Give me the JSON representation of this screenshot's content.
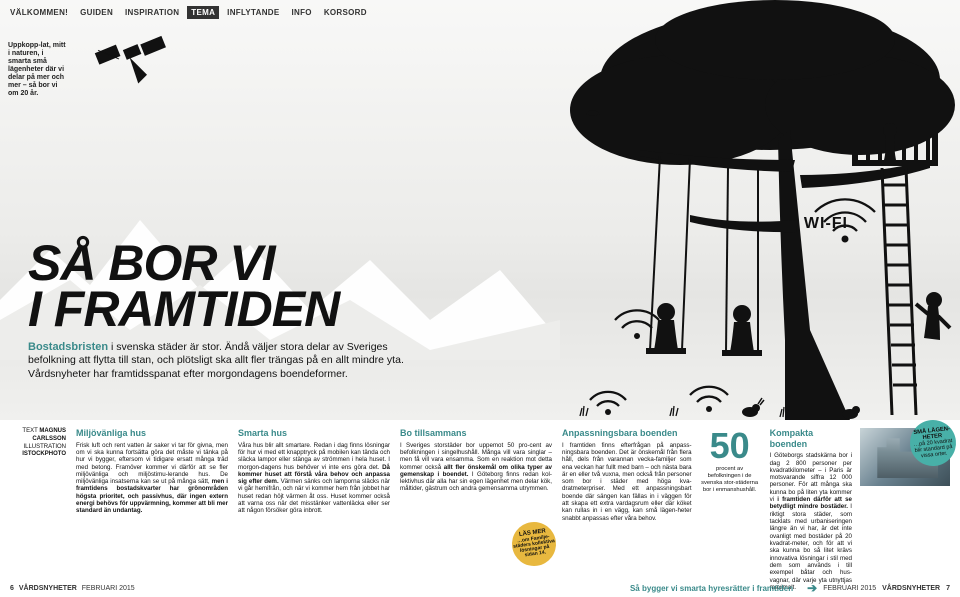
{
  "nav": {
    "items": [
      "VÄLKOMMEN!",
      "GUIDEN",
      "INSPIRATION",
      "TEMA",
      "INFLYTANDE",
      "INFO",
      "KORSORD"
    ],
    "active_index": 3
  },
  "intro": "Uppkopp-lat, mitt i naturen, i smarta små lägenheter där vi delar på mer och mer – så bor vi om 20 år.",
  "headline": {
    "line1": "SÅ BOR VI",
    "line2": "I FRAMTIDEN"
  },
  "lede": {
    "highlight": "Bostadsbristen",
    "rest": " i svenska städer är stor. Ändå väljer stora delar av Sveriges befolkning att flytta till stan, och plötsligt ska allt fler trängas på en allt mindre yta. Vårdsnyheter har framtidsspanat efter morgondagens boendeformer."
  },
  "wifi_label": "WI-FI",
  "credits": {
    "text_label": "TEXT",
    "text_value": "MAGNUS CARLSSON",
    "illu_label": "ILLUSTRATION",
    "illu_value": "ISTOCKPHOTO"
  },
  "columns": [
    {
      "title": "Miljövänliga hus",
      "body": "Frisk luft och rent vatten är saker vi tar för givna, men om vi ska kunna fortsätta göra det måste vi tänka på hur vi bygger, eftersom vi tidigare ersatt många träd med betong. Framöver kommer vi därför att se fler miljövänliga och miljöstimu-lerande hus. De miljövänliga insatserna kan se ut på många sätt, ",
      "bold": "men i framtidens bostadskvarter har grönområden högsta prioritet, och passivhus, där ingen extern energi behövs för uppvärmning, kommer att bli mer standard än undantag."
    },
    {
      "title": "Smarta hus",
      "body": "Våra hus blir allt smartare. Redan i dag finns lösningar för hur vi med ett knapptryck på mobilen kan tända och släcka lampor eller stänga av strömmen i hela huset. I morgon-dagens hus behöver vi inte ens göra det. ",
      "bold": "Då kommer huset att förstå våra behov och anpassa sig efter dem.",
      "body2": " Värmen sänks och lamporna släcks när vi går hemifrån, och när vi kommer hem från jobbet har huset redan höjt värmen åt oss. Huset kommer också att varna oss när det misstänker vattenläcka eller ser att någon försöker göra inbrott."
    },
    {
      "title": "Bo tillsammans",
      "body": "I Sveriges storstäder bor uppemot 50 pro-cent av befolkningen i singelhushåll. Många vill vara singlar – men få vill vara ensamma. Som en reaktion mot detta kommer också ",
      "bold": "allt fler önskemål om olika typer av gemenskap i boendet.",
      "body2": " I Göteborg finns redan kol-lektivhus där alla har sin egen lägenhet men delar kök, måltider, gästrum och andra gemensamma utrymmen.",
      "read_more": {
        "t1": "LÄS MER",
        "t2": "…om Familje-städers kollektiva lösningar på sidan 14."
      }
    },
    {
      "title": "Anpassningsbara boenden",
      "body": "I framtiden finns efterfrågan på anpass-ningsbara boenden. Det är önskemål från flera håll, dels från varannan vecka-familjer som ena veckan har fullt med barn – och nästa bara är en eller två vuxna, men också från personer som bor i städer med höga kva-dratmeterpriser. Med ett anpassningsbart boende där sängen kan fällas in i väggen för att skapa ett extra vardagsrum eller där köket kan rullas in i en vägg, kan små lägen-heter snabbt anpassas efter våra behov.",
      "bignum": {
        "num": "50",
        "caption": "procent av befolkningen i de svenska stor-städerna bor i enmanshushåll."
      }
    },
    {
      "title": "Kompakta boenden",
      "body": "I Göteborgs stadskärna bor i dag 2 800 personer per kvadratkilometer – i Paris är motsvarande siffra 12 000 personer. För att många ska kunna bo på liten yta kommer vi ",
      "bold": "i framtiden därför att se betydligt mindre bostäder.",
      "body2": " I riktigt stora städer, som tacklats med urbaniseringen längre än vi har, är det inte ovanligt med bostäder på 20 kvadrat-meter, och för att vi ska kunna bo så litet krävs innovativa lösningar i stil med dem som används i till exempel båtar och hus-vagnar, där varje yta utnyttjas maximalt.",
      "badge": {
        "t1": "SMÅ LÄGEN-HETER",
        "t2": "…på 20 kvadrat blir standard på vissa orter."
      }
    }
  ],
  "footer": {
    "left_page": "6",
    "left_pub": "VÅRDSNYHETER",
    "left_date": "FEBRUARI 2015",
    "right_next": "Så bygger vi smarta hyresrätter i framtiden",
    "right_date": "FEBRUARI 2015",
    "right_pub": "VÅRDSNYHETER",
    "right_page": "7"
  },
  "colors": {
    "accent": "#3a8a8a",
    "bubble_teal": "#48b0a8",
    "bubble_yellow": "#e8b83f",
    "ink": "#111111"
  }
}
